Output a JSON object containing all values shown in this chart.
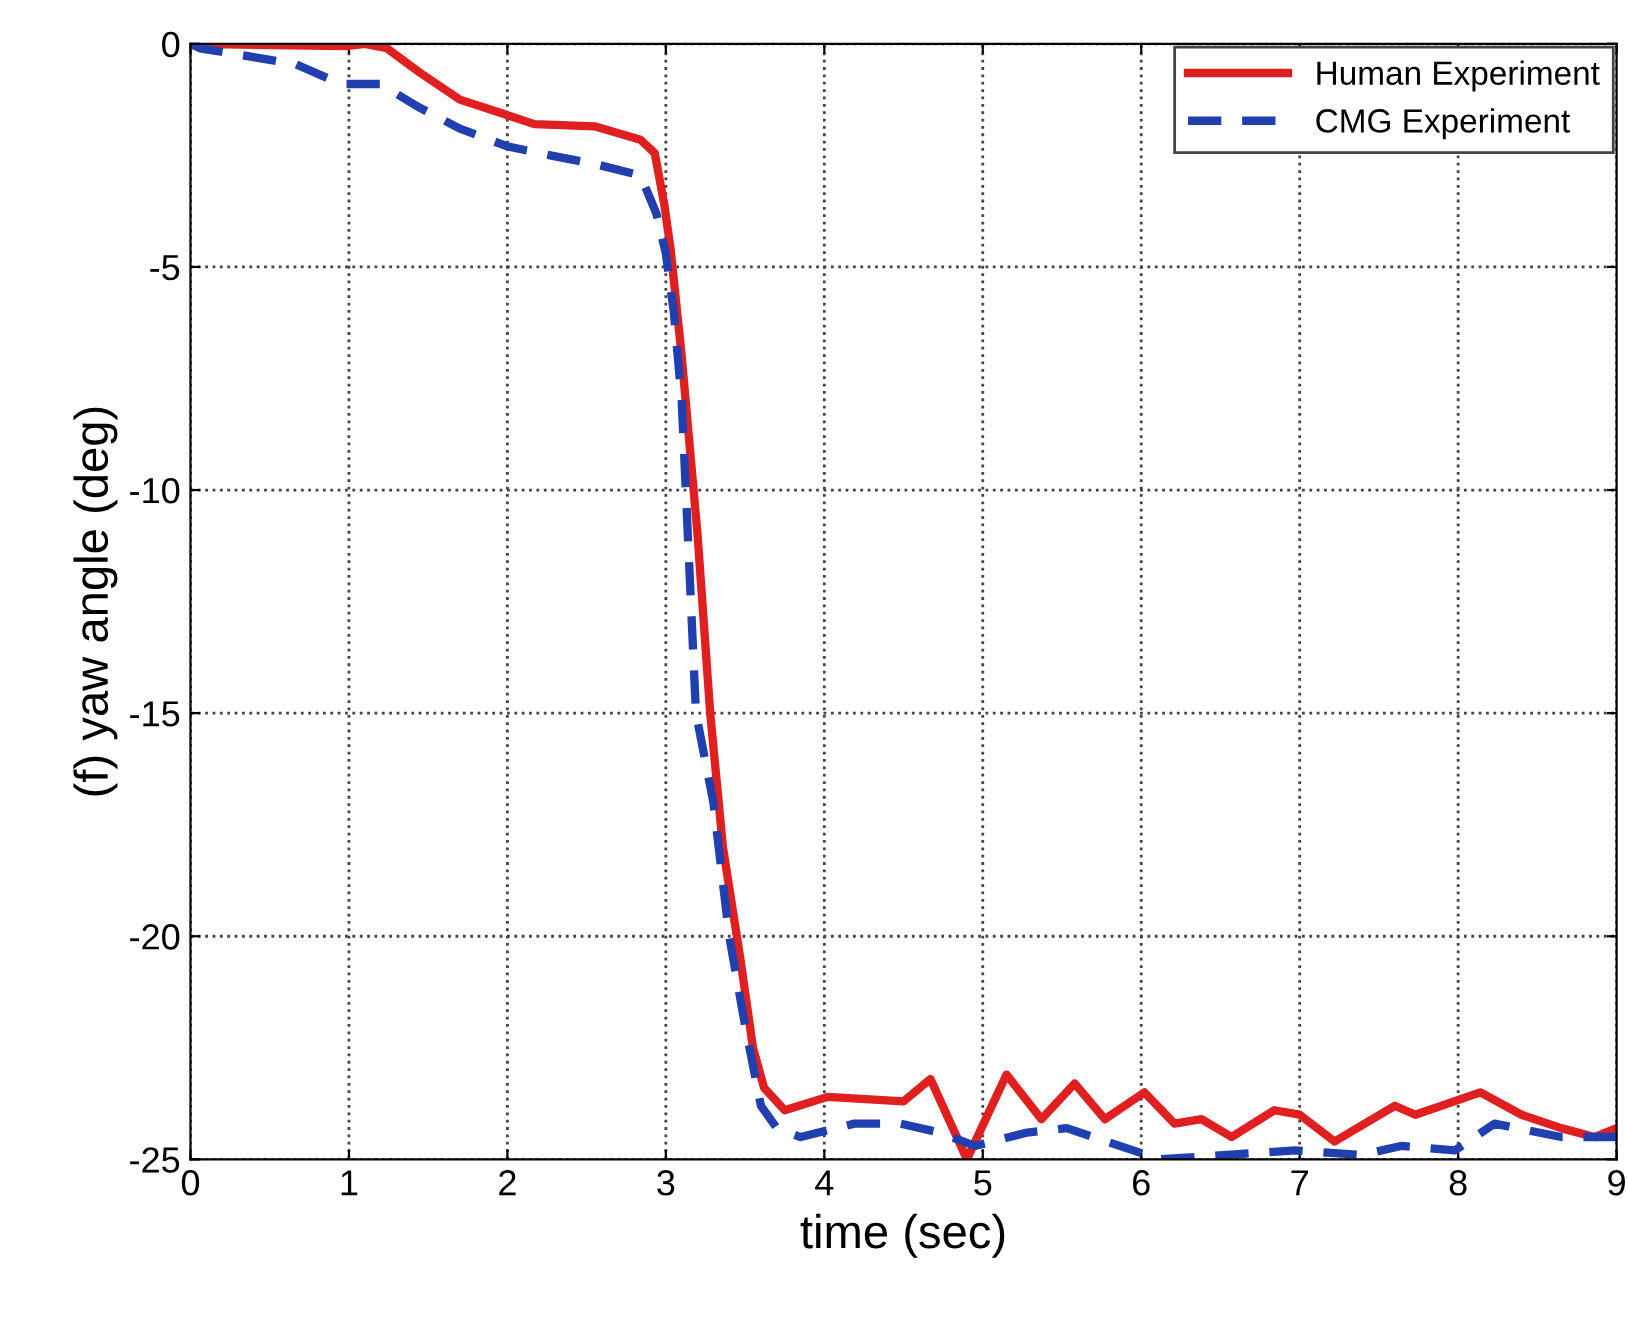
{
  "chart_data": {
    "type": "line",
    "xlabel": "time (sec)",
    "ylabel": "(f) yaw angle (deg)",
    "xlim": [
      0,
      9
    ],
    "ylim": [
      -25,
      0
    ],
    "xticks": [
      0,
      1,
      2,
      3,
      4,
      5,
      6,
      7,
      8,
      9
    ],
    "yticks": [
      -25,
      -20,
      -15,
      -10,
      -5,
      0
    ],
    "grid": true,
    "legend": "top right",
    "series": [
      {
        "name": "Human Experiment",
        "color": "#e02020",
        "line_style": "solid",
        "x": [
          0,
          0.98,
          1.1,
          1.24,
          1.45,
          1.7,
          1.96,
          2.17,
          2.55,
          2.84,
          2.93,
          2.99,
          3.03,
          3.1,
          3.2,
          3.28,
          3.36,
          3.47,
          3.55,
          3.62,
          3.75,
          4.02,
          4.5,
          4.67,
          4.9,
          5.15,
          5.37,
          5.58,
          5.77,
          6.02,
          6.21,
          6.38,
          6.57,
          6.84,
          7.0,
          7.22,
          7.6,
          7.73,
          8.14,
          8.4,
          8.65,
          8.86,
          9
        ],
        "values": [
          0,
          -0.05,
          0,
          -0.1,
          -0.65,
          -1.25,
          -1.55,
          -1.8,
          -1.85,
          -2.15,
          -2.45,
          -3.6,
          -4.6,
          -7,
          -11,
          -15,
          -18,
          -20.5,
          -22.5,
          -23.4,
          -23.9,
          -23.6,
          -23.7,
          -23.2,
          -25,
          -23.1,
          -24.1,
          -23.3,
          -24.1,
          -23.5,
          -24.2,
          -24.1,
          -24.5,
          -23.9,
          -24,
          -24.6,
          -23.8,
          -24,
          -23.5,
          -24,
          -24.3,
          -24.5,
          -24.3
        ]
      },
      {
        "name": "CMG Experiment",
        "color": "#2040b0",
        "line_style": "dashed",
        "x": [
          0,
          0.06,
          0.66,
          0.95,
          1.2,
          1.43,
          1.7,
          2.0,
          2.27,
          2.56,
          2.84,
          2.94,
          3.0,
          3.05,
          3.1,
          3.19,
          3.3,
          3.4,
          3.5,
          3.6,
          3.7,
          3.85,
          4.19,
          4.48,
          4.73,
          4.95,
          5.28,
          5.53,
          5.78,
          6.12,
          6.54,
          6.97,
          7.39,
          7.64,
          7.98,
          8.23,
          8.65,
          9
        ],
        "values": [
          0,
          -0.1,
          -0.45,
          -0.9,
          -0.9,
          -1.4,
          -1.9,
          -2.3,
          -2.5,
          -2.7,
          -2.95,
          -3.8,
          -4.7,
          -6,
          -8,
          -15,
          -17,
          -20,
          -22,
          -23.8,
          -24.3,
          -24.5,
          -24.2,
          -24.2,
          -24.4,
          -24.7,
          -24.4,
          -24.3,
          -24.6,
          -25,
          -24.9,
          -24.8,
          -24.9,
          -24.7,
          -24.8,
          -24.2,
          -24.5,
          -24.5
        ]
      }
    ]
  }
}
